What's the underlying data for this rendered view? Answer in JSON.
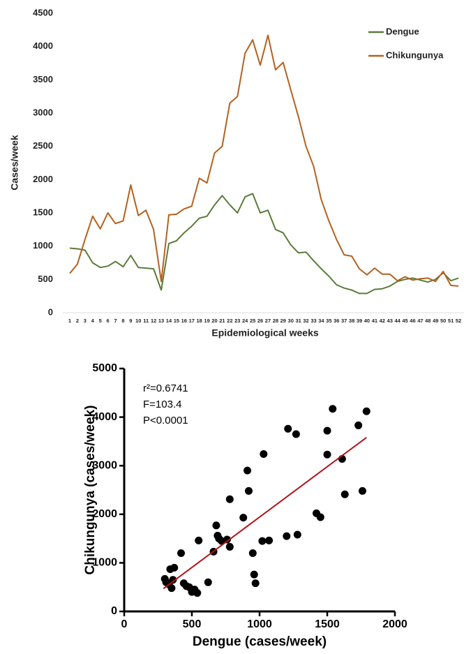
{
  "chart_data": [
    {
      "type": "line",
      "xlabel": "Epidemiological weeks",
      "ylabel": "Cases/week",
      "x": [
        1,
        2,
        3,
        4,
        5,
        6,
        7,
        8,
        9,
        10,
        11,
        12,
        13,
        14,
        15,
        16,
        17,
        18,
        19,
        20,
        21,
        22,
        23,
        24,
        25,
        26,
        27,
        28,
        29,
        30,
        31,
        32,
        33,
        34,
        35,
        36,
        37,
        38,
        39,
        40,
        41,
        42,
        43,
        44,
        45,
        46,
        47,
        48,
        49,
        50,
        51,
        52
      ],
      "xlim": [
        1,
        52
      ],
      "ylim": [
        0,
        4500
      ],
      "yticks": [
        0,
        500,
        1000,
        1500,
        2000,
        2500,
        3000,
        3500,
        4000,
        4500
      ],
      "legend": "top-right",
      "series": [
        {
          "name": "Dengue",
          "color": "#5b7b3a",
          "values": [
            970,
            960,
            940,
            750,
            680,
            700,
            770,
            690,
            860,
            680,
            670,
            660,
            340,
            1040,
            1080,
            1200,
            1300,
            1420,
            1450,
            1620,
            1760,
            1620,
            1500,
            1740,
            1790,
            1500,
            1540,
            1250,
            1200,
            1020,
            900,
            910,
            780,
            660,
            550,
            420,
            370,
            340,
            290,
            290,
            350,
            360,
            400,
            470,
            500,
            520,
            490,
            460,
            500,
            600,
            480,
            520
          ]
        },
        {
          "name": "Chikungunya",
          "color": "#b5611e",
          "values": [
            590,
            730,
            1100,
            1450,
            1260,
            1500,
            1340,
            1380,
            1920,
            1460,
            1540,
            1250,
            470,
            1470,
            1480,
            1560,
            1600,
            2020,
            1950,
            2400,
            2500,
            3150,
            3250,
            3900,
            4100,
            3720,
            4170,
            3650,
            3760,
            3350,
            2950,
            2500,
            2200,
            1700,
            1380,
            1100,
            870,
            850,
            660,
            570,
            670,
            580,
            580,
            480,
            540,
            490,
            510,
            520,
            470,
            620,
            410,
            400
          ]
        }
      ]
    },
    {
      "type": "scatter",
      "xlabel": "Dengue (cases/week)",
      "ylabel": "Chikungunya (cases/week)",
      "annotations": [
        "r²=0.6741",
        "F=103.4",
        "P<0.0001"
      ],
      "xlim": [
        0,
        2000
      ],
      "xticks": [
        0,
        500,
        1000,
        1500,
        2000
      ],
      "ylim": [
        0,
        5000
      ],
      "yticks": [
        0,
        1000,
        2000,
        3000,
        4000,
        5000
      ],
      "color": "#000000",
      "x": [
        300,
        310,
        330,
        340,
        350,
        360,
        370,
        420,
        440,
        460,
        480,
        500,
        520,
        540,
        550,
        620,
        660,
        680,
        690,
        700,
        720,
        760,
        780,
        780,
        880,
        910,
        920,
        950,
        960,
        970,
        1020,
        1030,
        1070,
        1200,
        1210,
        1270,
        1280,
        1420,
        1450,
        1500,
        1500,
        1540,
        1610,
        1630,
        1730,
        1760,
        1790
      ],
      "y": [
        670,
        600,
        560,
        870,
        480,
        650,
        900,
        1200,
        580,
        520,
        500,
        400,
        450,
        380,
        1460,
        600,
        1230,
        1770,
        1560,
        1500,
        1450,
        1480,
        1330,
        2310,
        1930,
        2900,
        2480,
        1200,
        760,
        580,
        1450,
        3240,
        1460,
        1550,
        3760,
        3650,
        1580,
        2020,
        1940,
        3720,
        3230,
        4170,
        3140,
        2410,
        3830,
        2480,
        4120
      ],
      "trend_line": {
        "x": [
          290,
          1790
        ],
        "y": [
          470,
          3580
        ],
        "color": "#b0141c"
      }
    }
  ]
}
